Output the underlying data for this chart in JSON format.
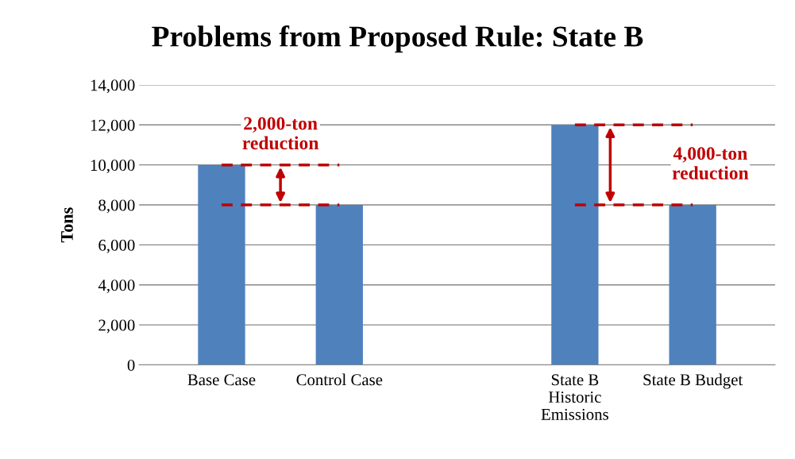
{
  "chart_data": {
    "type": "bar",
    "title": "Problems from Proposed Rule: State B",
    "ylabel": "Tons",
    "categories": [
      "Base Case",
      "Control Case",
      null,
      "State B\nHistoric\nEmissions",
      "State B Budget"
    ],
    "series": [
      {
        "color": "#4f81bd",
        "values": [
          10000,
          8000,
          null,
          12000,
          8000
        ]
      },
      {
        "type": "line",
        "color": "#c00000",
        "line_style": "dashed",
        "values": [
          10000,
          10000,
          null,
          null,
          null
        ]
      },
      {
        "type": "line",
        "color": "#c00000",
        "line_style": "dashed",
        "values": [
          8000,
          8000,
          null,
          null,
          null
        ]
      },
      {
        "type": "line",
        "color": "#c00000",
        "line_style": "dashed",
        "values": [
          null,
          null,
          null,
          12000,
          12000
        ]
      },
      {
        "type": "line",
        "color": "#c00000",
        "line_style": "dashed",
        "values": [
          null,
          null,
          null,
          8000,
          8000
        ]
      }
    ],
    "annotations": [
      "2,000-ton\nreduction",
      "4,000-ton\nreduction"
    ],
    "ylim": [
      0,
      14000
    ],
    "yticks": [
      {
        "value": 0,
        "label": "0"
      },
      {
        "value": 2000,
        "label": "2,000"
      },
      {
        "value": 4000,
        "label": "4,000"
      },
      {
        "value": 6000,
        "label": "6,000"
      },
      {
        "value": 8000,
        "label": "8,000"
      },
      {
        "value": 10000,
        "label": "10,000"
      },
      {
        "value": 12000,
        "label": "12,000"
      },
      {
        "value": 14000,
        "label": "14,000"
      }
    ],
    "grid": "y",
    "legend": false
  }
}
